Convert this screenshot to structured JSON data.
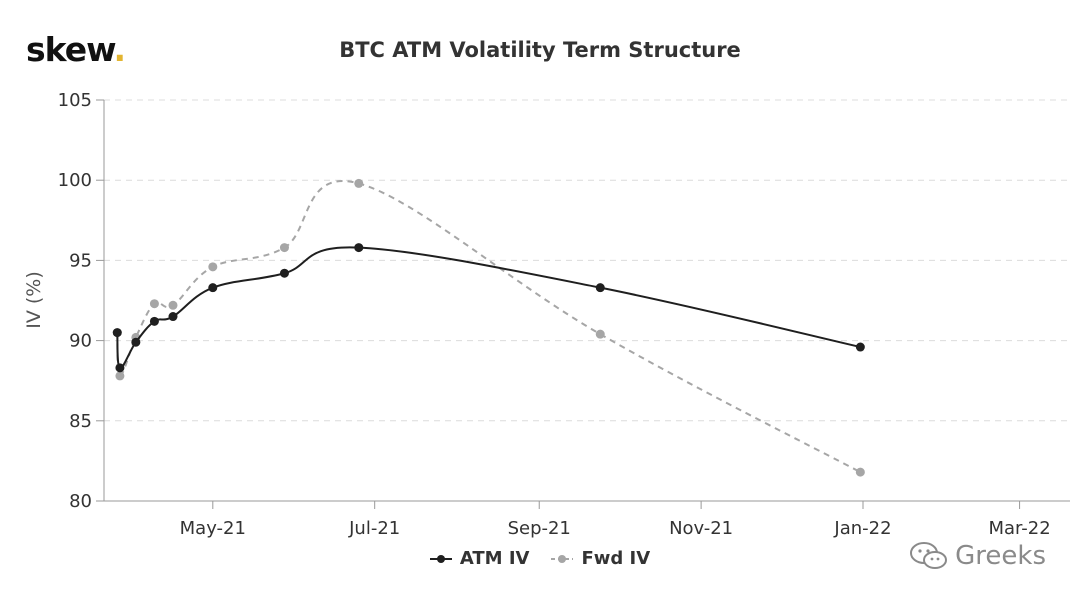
{
  "brand": {
    "name": "skew",
    "dot": "."
  },
  "watermark": {
    "text": "Greeks",
    "icon": "wechat-icon"
  },
  "colors": {
    "atm": "#1f1f1f",
    "fwd": "#a6a6a6",
    "accent": "#e3b531",
    "grid": "#dcdcdc"
  },
  "chart_data": {
    "type": "line",
    "title": "BTC ATM Volatility Term Structure",
    "ylabel": "IV (%)",
    "xlabel": "",
    "ylim": [
      80,
      105
    ],
    "yticks": [
      80,
      85,
      90,
      95,
      100,
      105
    ],
    "xlim": [
      "2021-03-21",
      "2022-03-20"
    ],
    "xticks": [
      {
        "date": "2021-05-01",
        "label": "May-21"
      },
      {
        "date": "2021-07-01",
        "label": "Jul-21"
      },
      {
        "date": "2021-09-01",
        "label": "Sep-21"
      },
      {
        "date": "2021-11-01",
        "label": "Nov-21"
      },
      {
        "date": "2022-01-01",
        "label": "Jan-22"
      },
      {
        "date": "2022-03-01",
        "label": "Mar-22"
      }
    ],
    "grid": "horizontal dashed",
    "legend_position": "bottom-center",
    "series": [
      {
        "name": "ATM IV",
        "style": "solid",
        "points": [
          {
            "x": "2021-03-26",
            "y": 90.5
          },
          {
            "x": "2021-03-27",
            "y": 88.3
          },
          {
            "x": "2021-04-02",
            "y": 89.9
          },
          {
            "x": "2021-04-09",
            "y": 91.2
          },
          {
            "x": "2021-04-16",
            "y": 91.5
          },
          {
            "x": "2021-05-01",
            "y": 93.3
          },
          {
            "x": "2021-05-28",
            "y": 94.2
          },
          {
            "x": "2021-06-25",
            "y": 95.8
          },
          {
            "x": "2021-09-24",
            "y": 93.3
          },
          {
            "x": "2021-12-31",
            "y": 89.6
          }
        ]
      },
      {
        "name": "Fwd IV",
        "style": "dashed",
        "points": [
          {
            "x": "2021-03-26",
            "y": 90.5
          },
          {
            "x": "2021-03-27",
            "y": 87.8
          },
          {
            "x": "2021-04-02",
            "y": 90.2
          },
          {
            "x": "2021-04-09",
            "y": 92.3
          },
          {
            "x": "2021-04-16",
            "y": 92.2
          },
          {
            "x": "2021-05-01",
            "y": 94.6
          },
          {
            "x": "2021-05-28",
            "y": 95.8
          },
          {
            "x": "2021-06-25",
            "y": 99.8
          },
          {
            "x": "2021-09-24",
            "y": 90.4
          },
          {
            "x": "2021-12-31",
            "y": 81.8
          }
        ]
      }
    ]
  }
}
